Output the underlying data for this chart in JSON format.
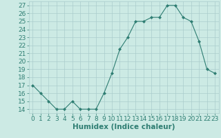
{
  "x": [
    0,
    1,
    2,
    3,
    4,
    5,
    6,
    7,
    8,
    9,
    10,
    11,
    12,
    13,
    14,
    15,
    16,
    17,
    18,
    19,
    20,
    21,
    22,
    23
  ],
  "y": [
    17,
    16,
    15,
    14,
    14,
    15,
    14,
    14,
    14,
    16,
    18.5,
    21.5,
    23,
    25,
    25,
    25.5,
    25.5,
    27,
    27,
    25.5,
    25,
    22.5,
    19,
    18.5
  ],
  "line_color": "#2e7d72",
  "marker_color": "#2e7d72",
  "bg_color": "#cceae4",
  "grid_color": "#aacccc",
  "xlabel": "Humidex (Indice chaleur)",
  "xlim": [
    -0.5,
    23.5
  ],
  "ylim": [
    13.5,
    27.5
  ],
  "yticks": [
    14,
    15,
    16,
    17,
    18,
    19,
    20,
    21,
    22,
    23,
    24,
    25,
    26,
    27
  ],
  "xticks": [
    0,
    1,
    2,
    3,
    4,
    5,
    6,
    7,
    8,
    9,
    10,
    11,
    12,
    13,
    14,
    15,
    16,
    17,
    18,
    19,
    20,
    21,
    22,
    23
  ],
  "tick_font_size": 6.5,
  "xlabel_fontsize": 7.5
}
